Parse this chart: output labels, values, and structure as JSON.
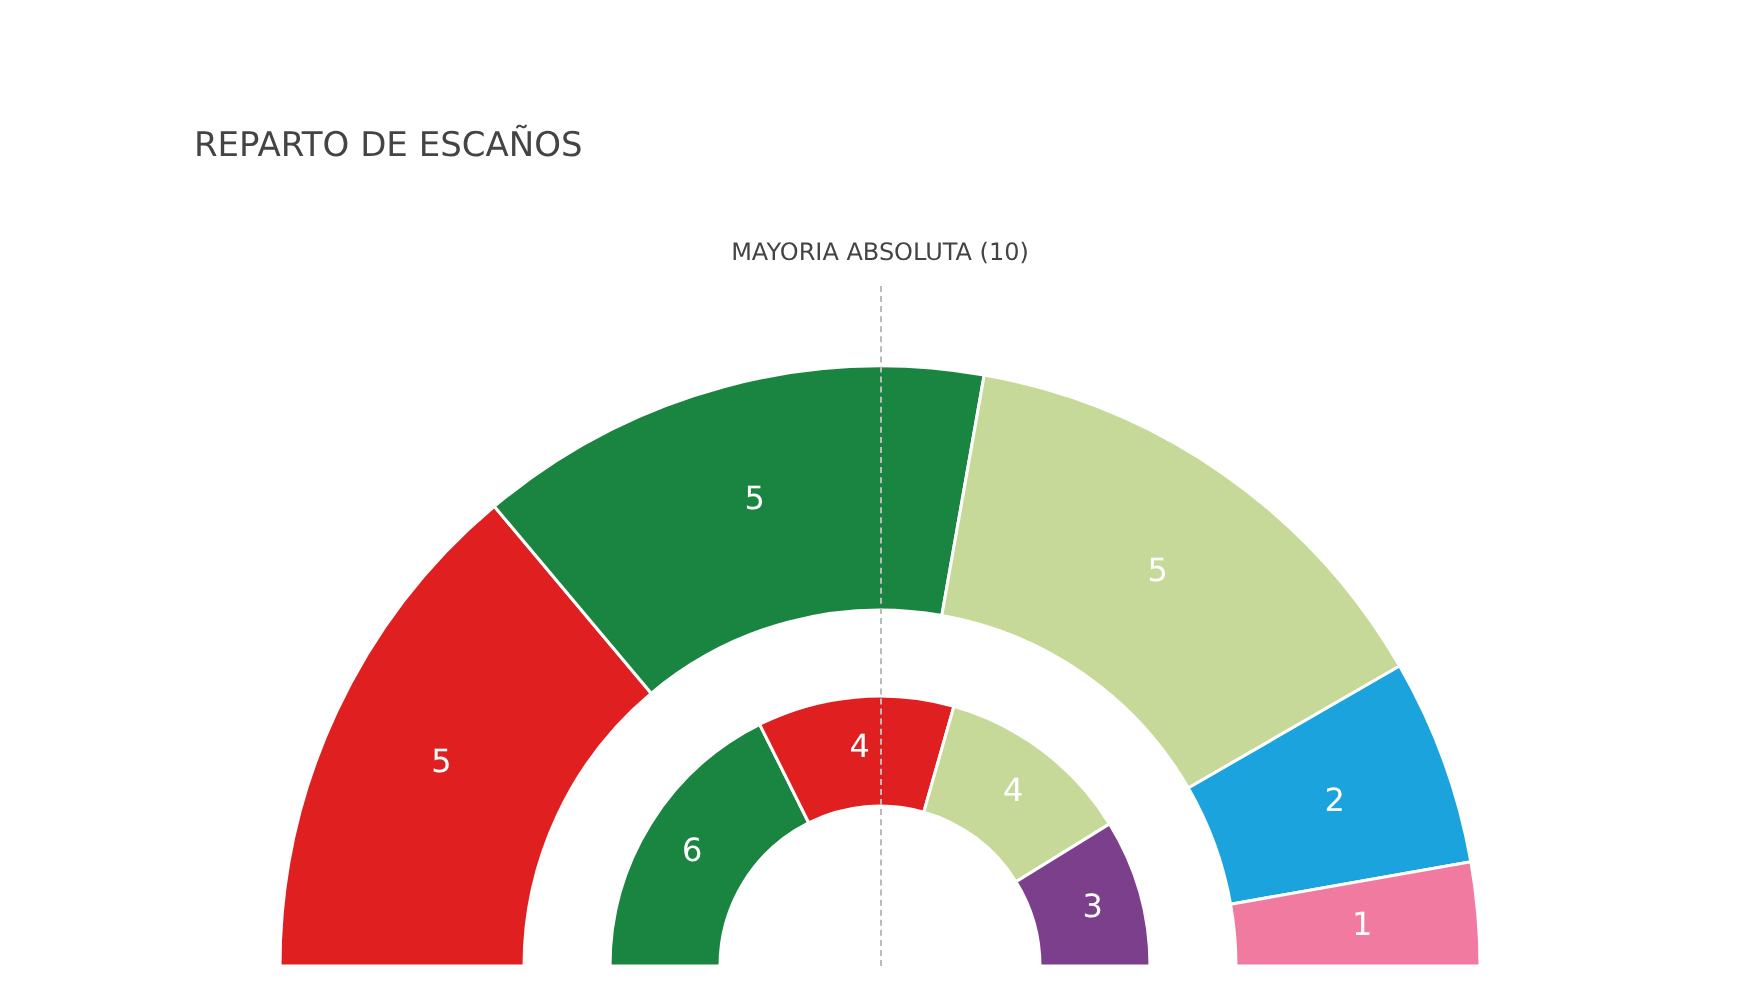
{
  "chart_data": [
    {
      "type": "donut",
      "title": "REPARTO DE ESCAÑOS",
      "annotations": [
        "MAYORIA ABSOLUTA (10)"
      ],
      "data_labels": true,
      "values": [
        5,
        5,
        5,
        2,
        1
      ],
      "colors": [
        "#e02020",
        "#1a8540",
        "#c6d998",
        "#1aa3dc",
        "#f07aa0"
      ]
    },
    {
      "type": "donut",
      "data_labels": true,
      "values": [
        6,
        4,
        4,
        3
      ],
      "colors": [
        "#1a8540",
        "#e02020",
        "#c6d998",
        "#7b3f8c"
      ]
    }
  ]
}
